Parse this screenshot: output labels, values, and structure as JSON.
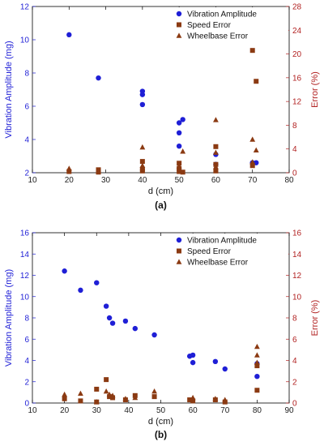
{
  "colors": {
    "vibration": "#1f1fd6",
    "speed": "#8b3a12",
    "wheelbase": "#8b3a12",
    "left_axis": "#1f1fd6",
    "right_axis": "#b22222",
    "frame": "#000000"
  },
  "chart_data": [
    {
      "type": "scatter",
      "caption": "(a)",
      "xlabel": "d (cm)",
      "ylabel_left": "Vibration Amplitude (mg)",
      "ylabel_right": "Error (%)",
      "xlim": [
        10,
        80
      ],
      "ylim_left": [
        2,
        12
      ],
      "ylim_right": [
        0,
        28
      ],
      "xticks": [
        10,
        20,
        30,
        40,
        50,
        60,
        70,
        80
      ],
      "yticks_left": [
        2,
        4,
        6,
        8,
        10,
        12
      ],
      "yticks_right": [
        0,
        4,
        8,
        12,
        16,
        20,
        24,
        28
      ],
      "grid": false,
      "legend_position": "top-right",
      "series": [
        {
          "name": "Vibration Amplitude",
          "axis": "left",
          "marker": "circle",
          "points": [
            {
              "x": 20,
              "y": 10.3
            },
            {
              "x": 28,
              "y": 7.7
            },
            {
              "x": 40,
              "y": 6.9
            },
            {
              "x": 40,
              "y": 6.7
            },
            {
              "x": 40,
              "y": 6.1
            },
            {
              "x": 50,
              "y": 5.0
            },
            {
              "x": 51,
              "y": 5.2
            },
            {
              "x": 50,
              "y": 4.4
            },
            {
              "x": 50,
              "y": 3.6
            },
            {
              "x": 60,
              "y": 3.1
            },
            {
              "x": 60,
              "y": 2.5
            },
            {
              "x": 70,
              "y": 2.6
            },
            {
              "x": 71,
              "y": 2.6
            }
          ]
        },
        {
          "name": "Speed Error",
          "axis": "right",
          "marker": "square",
          "points": [
            {
              "x": 20,
              "y": 0.2
            },
            {
              "x": 28,
              "y": 0.5
            },
            {
              "x": 28,
              "y": 0.1
            },
            {
              "x": 40,
              "y": 1.9
            },
            {
              "x": 40,
              "y": 0.6
            },
            {
              "x": 40,
              "y": 0.3
            },
            {
              "x": 50,
              "y": 1.6
            },
            {
              "x": 50,
              "y": 0.7
            },
            {
              "x": 50,
              "y": 0.2
            },
            {
              "x": 51,
              "y": 0.1
            },
            {
              "x": 60,
              "y": 4.4
            },
            {
              "x": 60,
              "y": 1.4
            },
            {
              "x": 60,
              "y": 0.3
            },
            {
              "x": 70,
              "y": 20.6
            },
            {
              "x": 71,
              "y": 15.4
            },
            {
              "x": 70,
              "y": 1.2
            }
          ]
        },
        {
          "name": "Wheelbase Error",
          "axis": "right",
          "marker": "triangle",
          "points": [
            {
              "x": 20,
              "y": 0.7
            },
            {
              "x": 28,
              "y": 0.3
            },
            {
              "x": 40,
              "y": 4.3
            },
            {
              "x": 40,
              "y": 1.2
            },
            {
              "x": 50,
              "y": 1.1
            },
            {
              "x": 51,
              "y": 3.6
            },
            {
              "x": 60,
              "y": 8.9
            },
            {
              "x": 60,
              "y": 3.4
            },
            {
              "x": 60,
              "y": 1.0
            },
            {
              "x": 70,
              "y": 5.6
            },
            {
              "x": 71,
              "y": 3.8
            },
            {
              "x": 70,
              "y": 1.8
            }
          ]
        }
      ]
    },
    {
      "type": "scatter",
      "caption": "(b)",
      "xlabel": "d (cm)",
      "ylabel_left": "Vibration Amplitude (mg)",
      "ylabel_right": "Error (%)",
      "xlim": [
        10,
        90
      ],
      "ylim_left": [
        0,
        16
      ],
      "ylim_right": [
        0,
        16
      ],
      "xticks": [
        10,
        20,
        30,
        40,
        50,
        60,
        70,
        80,
        90
      ],
      "yticks_left": [
        0,
        2,
        4,
        6,
        8,
        10,
        12,
        14,
        16
      ],
      "yticks_right": [
        0,
        2,
        4,
        6,
        8,
        10,
        12,
        14,
        16
      ],
      "grid": false,
      "legend_position": "top-right",
      "series": [
        {
          "name": "Vibration Amplitude",
          "axis": "left",
          "marker": "circle",
          "points": [
            {
              "x": 20,
              "y": 12.4
            },
            {
              "x": 25,
              "y": 10.6
            },
            {
              "x": 30,
              "y": 11.3
            },
            {
              "x": 33,
              "y": 9.1
            },
            {
              "x": 34,
              "y": 8.0
            },
            {
              "x": 35,
              "y": 7.5
            },
            {
              "x": 39,
              "y": 7.7
            },
            {
              "x": 42,
              "y": 7.0
            },
            {
              "x": 48,
              "y": 6.4
            },
            {
              "x": 59,
              "y": 4.4
            },
            {
              "x": 60,
              "y": 4.5
            },
            {
              "x": 60,
              "y": 3.8
            },
            {
              "x": 67,
              "y": 3.9
            },
            {
              "x": 70,
              "y": 3.2
            },
            {
              "x": 80,
              "y": 3.7
            },
            {
              "x": 80,
              "y": 2.5
            }
          ]
        },
        {
          "name": "Speed Error",
          "axis": "right",
          "marker": "square",
          "points": [
            {
              "x": 20,
              "y": 0.4
            },
            {
              "x": 25,
              "y": 0.2
            },
            {
              "x": 30,
              "y": 1.3
            },
            {
              "x": 30,
              "y": 0.1
            },
            {
              "x": 33,
              "y": 2.2
            },
            {
              "x": 34,
              "y": 0.6
            },
            {
              "x": 35,
              "y": 0.5
            },
            {
              "x": 39,
              "y": 0.3
            },
            {
              "x": 42,
              "y": 0.7
            },
            {
              "x": 48,
              "y": 0.6
            },
            {
              "x": 59,
              "y": 0.3
            },
            {
              "x": 60,
              "y": 0.2
            },
            {
              "x": 67,
              "y": 0.3
            },
            {
              "x": 70,
              "y": 0.1
            },
            {
              "x": 80,
              "y": 3.5
            },
            {
              "x": 80,
              "y": 1.2
            }
          ]
        },
        {
          "name": "Wheelbase Error",
          "axis": "right",
          "marker": "triangle",
          "points": [
            {
              "x": 20,
              "y": 0.8
            },
            {
              "x": 25,
              "y": 0.9
            },
            {
              "x": 30,
              "y": 0.1
            },
            {
              "x": 33,
              "y": 1.1
            },
            {
              "x": 34,
              "y": 0.8
            },
            {
              "x": 35,
              "y": 0.7
            },
            {
              "x": 39,
              "y": 0.4
            },
            {
              "x": 42,
              "y": 0.5
            },
            {
              "x": 48,
              "y": 1.1
            },
            {
              "x": 60,
              "y": 0.5
            },
            {
              "x": 67,
              "y": 0.4
            },
            {
              "x": 70,
              "y": 0.3
            },
            {
              "x": 80,
              "y": 5.3
            },
            {
              "x": 80,
              "y": 4.5
            },
            {
              "x": 80,
              "y": 3.8
            }
          ]
        }
      ]
    }
  ]
}
